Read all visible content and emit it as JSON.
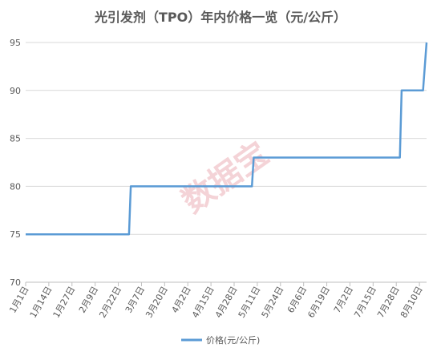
{
  "chart_data": {
    "type": "line",
    "title": "光引发剂（TPO）年内价格一览（元/公斤）",
    "xlabel": "",
    "ylabel": "",
    "ylim": [
      70,
      95
    ],
    "yticks": [
      70,
      75,
      80,
      85,
      90,
      95
    ],
    "x_start": "2023-01-01",
    "x_end": "2023-08-14",
    "x_tick_labels": [
      "1月1日",
      "1月14日",
      "1月27日",
      "2月9日",
      "2月22日",
      "3月7日",
      "3月20日",
      "4月2日",
      "4月15日",
      "4月28日",
      "5月11日",
      "5月24日",
      "6月6日",
      "6月19日",
      "7月2日",
      "7月15日",
      "7月28日",
      "8月10日"
    ],
    "grid": "horizontal",
    "legend_position": "bottom",
    "series": [
      {
        "name": "价格(元/公斤)",
        "color": "#5b9bd5",
        "points": [
          [
            "2023-01-01",
            75
          ],
          [
            "2023-02-28",
            75
          ],
          [
            "2023-03-01",
            80
          ],
          [
            "2023-05-08",
            80
          ],
          [
            "2023-05-09",
            83
          ],
          [
            "2023-07-30",
            83
          ],
          [
            "2023-07-31",
            90
          ],
          [
            "2023-08-12",
            90
          ],
          [
            "2023-08-14",
            95
          ]
        ]
      }
    ]
  },
  "watermark": "数据宝"
}
